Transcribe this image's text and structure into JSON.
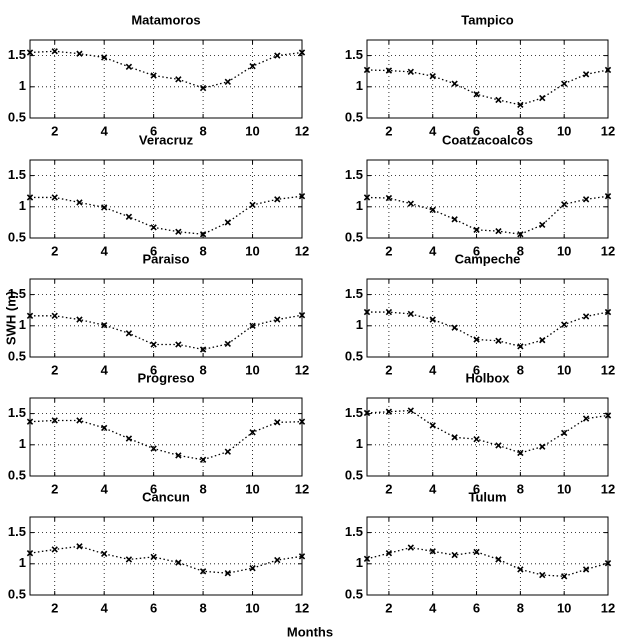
{
  "figure": {
    "xlabel": "Months",
    "ylabel": "SWH (m)"
  },
  "chart_data": [
    {
      "type": "line",
      "title": "Matamoros",
      "x": [
        1,
        2,
        3,
        4,
        5,
        6,
        7,
        8,
        9,
        10,
        11,
        12
      ],
      "series": [
        {
          "color": "#000000",
          "values": [
            1.55,
            1.57,
            1.53,
            1.47,
            1.32,
            1.18,
            1.12,
            0.98,
            1.08,
            1.33,
            1.5,
            1.55
          ]
        }
      ],
      "xlim": [
        1,
        12
      ],
      "ylim": [
        0.5,
        1.75
      ],
      "xticks": [
        2,
        4,
        6,
        8,
        10,
        12
      ],
      "yticks": [
        0.5,
        1,
        1.5
      ],
      "grid": true
    },
    {
      "type": "line",
      "title": "Tampico",
      "x": [
        1,
        2,
        3,
        4,
        5,
        6,
        7,
        8,
        9,
        10,
        11,
        12
      ],
      "series": [
        {
          "color": "#000000",
          "values": [
            1.27,
            1.26,
            1.24,
            1.17,
            1.05,
            0.88,
            0.79,
            0.71,
            0.82,
            1.05,
            1.2,
            1.27
          ]
        }
      ],
      "xlim": [
        1,
        12
      ],
      "ylim": [
        0.5,
        1.75
      ],
      "xticks": [
        2,
        4,
        6,
        8,
        10,
        12
      ],
      "yticks": [
        0.5,
        1,
        1.5
      ],
      "grid": true
    },
    {
      "type": "line",
      "title": "Veracruz",
      "x": [
        1,
        2,
        3,
        4,
        5,
        6,
        7,
        8,
        9,
        10,
        11,
        12
      ],
      "series": [
        {
          "color": "#000000",
          "values": [
            1.15,
            1.15,
            1.07,
            0.99,
            0.84,
            0.67,
            0.6,
            0.56,
            0.75,
            1.03,
            1.12,
            1.17
          ]
        }
      ],
      "xlim": [
        1,
        12
      ],
      "ylim": [
        0.5,
        1.75
      ],
      "xticks": [
        2,
        4,
        6,
        8,
        10,
        12
      ],
      "yticks": [
        0.5,
        1,
        1.5
      ],
      "grid": true
    },
    {
      "type": "line",
      "title": "Coatzacoalcos",
      "x": [
        1,
        2,
        3,
        4,
        5,
        6,
        7,
        8,
        9,
        10,
        11,
        12
      ],
      "series": [
        {
          "color": "#000000",
          "values": [
            1.15,
            1.14,
            1.05,
            0.95,
            0.8,
            0.63,
            0.61,
            0.56,
            0.71,
            1.04,
            1.12,
            1.17
          ]
        }
      ],
      "xlim": [
        1,
        12
      ],
      "ylim": [
        0.5,
        1.75
      ],
      "xticks": [
        2,
        4,
        6,
        8,
        10,
        12
      ],
      "yticks": [
        0.5,
        1,
        1.5
      ],
      "grid": true
    },
    {
      "type": "line",
      "title": "Paraiso",
      "x": [
        1,
        2,
        3,
        4,
        5,
        6,
        7,
        8,
        9,
        10,
        11,
        12
      ],
      "series": [
        {
          "color": "#000000",
          "values": [
            1.16,
            1.16,
            1.1,
            1.01,
            0.88,
            0.7,
            0.7,
            0.62,
            0.71,
            1.0,
            1.1,
            1.17
          ]
        }
      ],
      "xlim": [
        1,
        12
      ],
      "ylim": [
        0.5,
        1.75
      ],
      "xticks": [
        2,
        4,
        6,
        8,
        10,
        12
      ],
      "yticks": [
        0.5,
        1,
        1.5
      ],
      "grid": true
    },
    {
      "type": "line",
      "title": "Campeche",
      "x": [
        1,
        2,
        3,
        4,
        5,
        6,
        7,
        8,
        9,
        10,
        11,
        12
      ],
      "series": [
        {
          "color": "#000000",
          "values": [
            1.22,
            1.22,
            1.19,
            1.1,
            0.97,
            0.78,
            0.76,
            0.67,
            0.77,
            1.02,
            1.15,
            1.22
          ]
        }
      ],
      "xlim": [
        1,
        12
      ],
      "ylim": [
        0.5,
        1.75
      ],
      "xticks": [
        2,
        4,
        6,
        8,
        10,
        12
      ],
      "yticks": [
        0.5,
        1,
        1.5
      ],
      "grid": true
    },
    {
      "type": "line",
      "title": "Progreso",
      "x": [
        1,
        2,
        3,
        4,
        5,
        6,
        7,
        8,
        9,
        10,
        11,
        12
      ],
      "series": [
        {
          "color": "#000000",
          "values": [
            1.37,
            1.39,
            1.39,
            1.27,
            1.1,
            0.94,
            0.83,
            0.76,
            0.89,
            1.2,
            1.36,
            1.37
          ]
        }
      ],
      "xlim": [
        1,
        12
      ],
      "ylim": [
        0.5,
        1.75
      ],
      "xticks": [
        2,
        4,
        6,
        8,
        10,
        12
      ],
      "yticks": [
        0.5,
        1,
        1.5
      ],
      "grid": true
    },
    {
      "type": "line",
      "title": "Holbox",
      "x": [
        1,
        2,
        3,
        4,
        5,
        6,
        7,
        8,
        9,
        10,
        11,
        12
      ],
      "series": [
        {
          "color": "#000000",
          "values": [
            1.51,
            1.53,
            1.55,
            1.31,
            1.12,
            1.09,
            0.99,
            0.87,
            0.97,
            1.19,
            1.42,
            1.47
          ]
        }
      ],
      "xlim": [
        1,
        12
      ],
      "ylim": [
        0.5,
        1.75
      ],
      "xticks": [
        2,
        4,
        6,
        8,
        10,
        12
      ],
      "yticks": [
        0.5,
        1,
        1.5
      ],
      "grid": true
    },
    {
      "type": "line",
      "title": "Cancun",
      "x": [
        1,
        2,
        3,
        4,
        5,
        6,
        7,
        8,
        9,
        10,
        11,
        12
      ],
      "series": [
        {
          "color": "#000000",
          "values": [
            1.17,
            1.23,
            1.28,
            1.16,
            1.07,
            1.11,
            1.02,
            0.88,
            0.85,
            0.93,
            1.06,
            1.12
          ]
        }
      ],
      "xlim": [
        1,
        12
      ],
      "ylim": [
        0.5,
        1.75
      ],
      "xticks": [
        2,
        4,
        6,
        8,
        10,
        12
      ],
      "yticks": [
        0.5,
        1,
        1.5
      ],
      "grid": true
    },
    {
      "type": "line",
      "title": "Tulum",
      "x": [
        1,
        2,
        3,
        4,
        5,
        6,
        7,
        8,
        9,
        10,
        11,
        12
      ],
      "series": [
        {
          "color": "#000000",
          "values": [
            1.08,
            1.17,
            1.26,
            1.2,
            1.14,
            1.19,
            1.07,
            0.91,
            0.82,
            0.8,
            0.91,
            1.01
          ]
        }
      ],
      "xlim": [
        1,
        12
      ],
      "ylim": [
        0.5,
        1.75
      ],
      "xticks": [
        2,
        4,
        6,
        8,
        10,
        12
      ],
      "yticks": [
        0.5,
        1,
        1.5
      ],
      "grid": true
    }
  ]
}
